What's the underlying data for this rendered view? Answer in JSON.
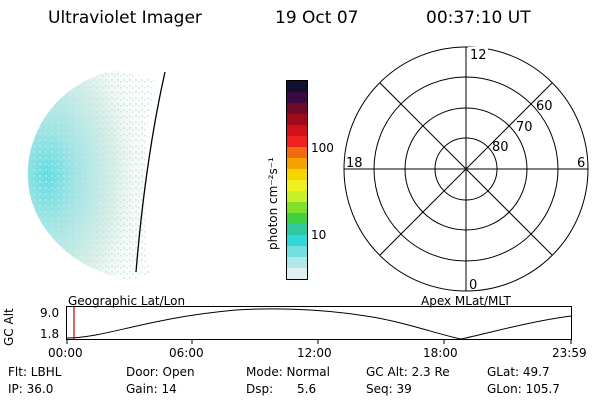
{
  "header": {
    "instrument": "Ultraviolet Imager",
    "date": "19 Oct 07",
    "time": "00:37:10 UT"
  },
  "colorbar": {
    "unit_label": "photon cm⁻²s⁻¹",
    "ticks": [
      "100",
      "10"
    ],
    "colors": [
      "#101030",
      "#3a0a40",
      "#6e0a2a",
      "#a00a1a",
      "#d0101a",
      "#f02020",
      "#f26a10",
      "#f5a300",
      "#f5d600",
      "#f0f020",
      "#c8f028",
      "#80e02a",
      "#40d040",
      "#30c8a0",
      "#30d8d8",
      "#70e0e0",
      "#b0e8e8",
      "#e0f0f0"
    ]
  },
  "polar_plot": {
    "mlt_labels": [
      "12",
      "18",
      "6",
      "0"
    ],
    "lat_labels": [
      "60",
      "70",
      "80"
    ]
  },
  "timeline": {
    "y_label": "GC Alt",
    "y_ticks": [
      "9.0",
      "1.8"
    ],
    "left_title": "Geographic Lat/Lon",
    "right_title": "Apex MLat/MLT",
    "x_ticks": [
      "00:00",
      "06:00",
      "12:00",
      "18:00",
      "23:59"
    ],
    "marker_color": "#cc0000"
  },
  "status": {
    "flt": "Flt: LBHL",
    "door": "Door: Open",
    "mode": "Mode: Normal",
    "gc_alt": "GC Alt: 2.3 Re",
    "glat": "GLat:  49.7",
    "ip": "IP: 36.0",
    "gain": "Gain: 14",
    "dsp_label": "Dsp:",
    "dsp_value": "5.6",
    "seq": "Seq: 39",
    "glon": "GLon: 105.7"
  }
}
